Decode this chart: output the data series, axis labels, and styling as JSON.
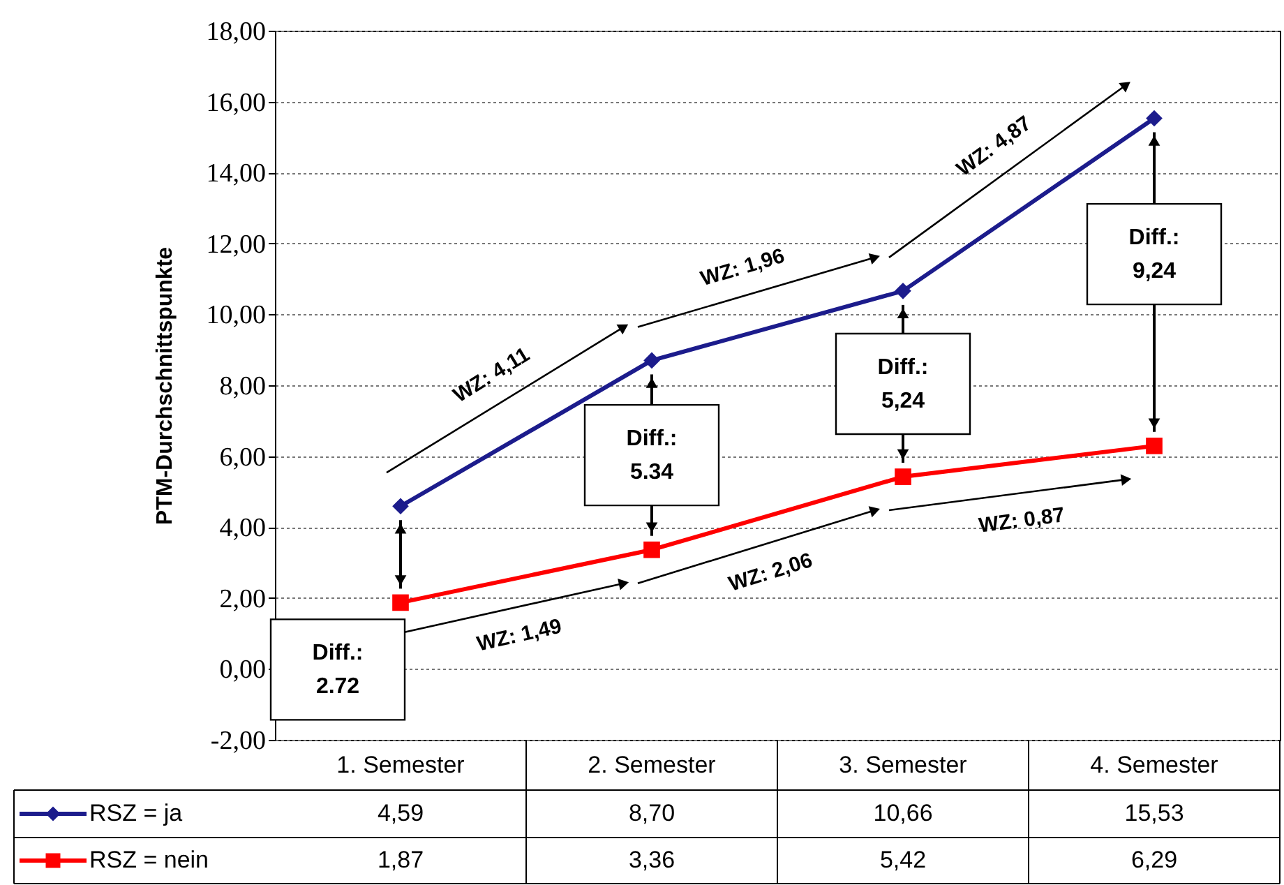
{
  "chart_data": {
    "type": "line",
    "ylabel": "PTM-Durchschnittspunkte",
    "categories": [
      "1. Semester",
      "2. Semester",
      "3. Semester",
      "4. Semester"
    ],
    "series": [
      {
        "name": "RSZ = ja",
        "color": "#1c1c8c",
        "marker": "diamond",
        "values": [
          4.59,
          8.7,
          10.66,
          15.53
        ],
        "value_labels": [
          "4,59",
          "8,70",
          "10,66",
          "15,53"
        ]
      },
      {
        "name": "RSZ = nein",
        "color": "#ff0000",
        "marker": "square",
        "values": [
          1.87,
          3.36,
          5.42,
          6.29
        ],
        "value_labels": [
          "1,87",
          "3,36",
          "5,42",
          "6,29"
        ]
      }
    ],
    "ylim": [
      -2,
      18
    ],
    "yticks": [
      {
        "value": -2,
        "label": "-2,00"
      },
      {
        "value": 0,
        "label": "0,00"
      },
      {
        "value": 2,
        "label": "2,00"
      },
      {
        "value": 4,
        "label": "4,00"
      },
      {
        "value": 6,
        "label": "6,00"
      },
      {
        "value": 8,
        "label": "8,00"
      },
      {
        "value": 10,
        "label": "10,00"
      },
      {
        "value": 12,
        "label": "12,00"
      },
      {
        "value": 14,
        "label": "14,00"
      },
      {
        "value": 16,
        "label": "16,00"
      },
      {
        "value": 18,
        "label": "18,00"
      }
    ],
    "grid": "y",
    "legend": "bottom",
    "line_style": "solid",
    "annotations": [
      "WZ: 4,11",
      "WZ: 1,96",
      "WZ: 4,87",
      "WZ: 1,49",
      "WZ: 2,06",
      "WZ: 0,87",
      "Diff.: 2.72",
      "Diff.: 5.34",
      "Diff.: 5,24",
      "Diff.: 9,24"
    ]
  }
}
